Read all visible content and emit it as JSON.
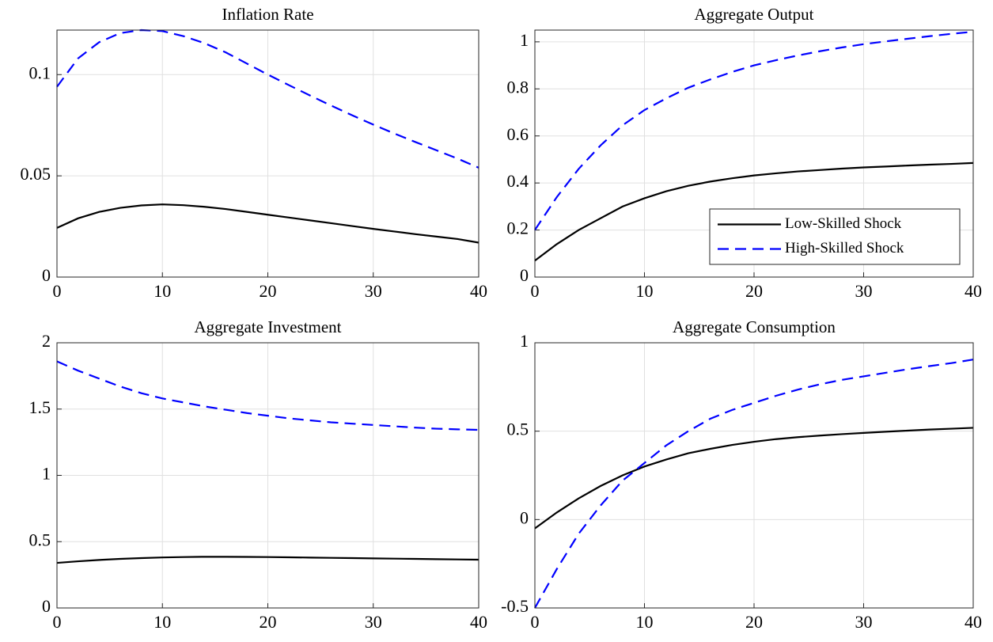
{
  "chart_data": [
    {
      "type": "line",
      "title": "Inflation Rate",
      "x": [
        0,
        2,
        4,
        6,
        8,
        10,
        12,
        14,
        16,
        18,
        20,
        22,
        24,
        26,
        28,
        30,
        32,
        34,
        36,
        38,
        40
      ],
      "xlim": [
        0,
        40
      ],
      "xticks": [
        0,
        10,
        20,
        30,
        40
      ],
      "ylim": [
        0,
        0.122
      ],
      "yticks": [
        0,
        0.05,
        0.1
      ],
      "grid": true,
      "series": [
        {
          "color": "#000000",
          "style": "solid",
          "values": [
            0.0243,
            0.029,
            0.0322,
            0.0342,
            0.0354,
            0.0359,
            0.0355,
            0.0347,
            0.0336,
            0.0322,
            0.0308,
            0.0294,
            0.028,
            0.0266,
            0.0252,
            0.0238,
            0.0225,
            0.0212,
            0.02,
            0.0188,
            0.017
          ]
        },
        {
          "color": "#0000ff",
          "style": "dashed",
          "values": [
            0.094,
            0.108,
            0.116,
            0.1205,
            0.122,
            0.1215,
            0.119,
            0.1155,
            0.111,
            0.1055,
            0.1,
            0.0948,
            0.0897,
            0.0847,
            0.0799,
            0.0753,
            0.0709,
            0.0667,
            0.0626,
            0.0585,
            0.054
          ]
        }
      ]
    },
    {
      "type": "line",
      "title": "Aggregate Output",
      "x": [
        0,
        2,
        4,
        6,
        8,
        10,
        12,
        14,
        16,
        18,
        20,
        22,
        24,
        26,
        28,
        30,
        32,
        34,
        36,
        38,
        40
      ],
      "xlim": [
        0,
        40
      ],
      "xticks": [
        0,
        10,
        20,
        30,
        40
      ],
      "ylim": [
        0,
        1.05
      ],
      "yticks": [
        0,
        0.2,
        0.4,
        0.6,
        0.8,
        1
      ],
      "grid": true,
      "legend": "lower right",
      "series": [
        {
          "name": "Low-Skilled Shock",
          "color": "#000000",
          "style": "solid",
          "values": [
            0.07,
            0.14,
            0.2,
            0.25,
            0.3,
            0.335,
            0.365,
            0.388,
            0.406,
            0.42,
            0.432,
            0.441,
            0.449,
            0.455,
            0.461,
            0.466,
            0.47,
            0.474,
            0.478,
            0.481,
            0.485
          ]
        },
        {
          "name": "High-Skilled Shock",
          "color": "#0000ff",
          "style": "dashed",
          "values": [
            0.2,
            0.34,
            0.46,
            0.56,
            0.645,
            0.71,
            0.76,
            0.805,
            0.84,
            0.872,
            0.9,
            0.922,
            0.942,
            0.96,
            0.976,
            0.99,
            1.002,
            1.013,
            1.024,
            1.034,
            1.043
          ]
        }
      ]
    },
    {
      "type": "line",
      "title": "Aggregate Investment",
      "x": [
        0,
        2,
        4,
        6,
        8,
        10,
        12,
        14,
        16,
        18,
        20,
        22,
        24,
        26,
        28,
        30,
        32,
        34,
        36,
        38,
        40
      ],
      "xlim": [
        0,
        40
      ],
      "xticks": [
        0,
        10,
        20,
        30,
        40
      ],
      "ylim": [
        0,
        2
      ],
      "yticks": [
        0,
        0.5,
        1,
        1.5,
        2
      ],
      "grid": true,
      "series": [
        {
          "color": "#000000",
          "style": "solid",
          "values": [
            0.34,
            0.352,
            0.362,
            0.37,
            0.376,
            0.381,
            0.384,
            0.386,
            0.386,
            0.385,
            0.384,
            0.382,
            0.38,
            0.378,
            0.376,
            0.374,
            0.372,
            0.37,
            0.368,
            0.366,
            0.364
          ]
        },
        {
          "color": "#0000ff",
          "style": "dashed",
          "values": [
            1.86,
            1.79,
            1.73,
            1.67,
            1.62,
            1.58,
            1.55,
            1.52,
            1.495,
            1.47,
            1.45,
            1.43,
            1.415,
            1.4,
            1.39,
            1.38,
            1.37,
            1.36,
            1.352,
            1.347,
            1.343
          ]
        }
      ]
    },
    {
      "type": "line",
      "title": "Aggregate Consumption",
      "x": [
        0,
        2,
        4,
        6,
        8,
        10,
        12,
        14,
        16,
        18,
        20,
        22,
        24,
        26,
        28,
        30,
        32,
        34,
        36,
        38,
        40
      ],
      "xlim": [
        0,
        40
      ],
      "xticks": [
        0,
        10,
        20,
        30,
        40
      ],
      "ylim": [
        -0.5,
        1
      ],
      "yticks": [
        -0.5,
        0,
        0.5,
        1
      ],
      "grid": true,
      "series": [
        {
          "color": "#000000",
          "style": "solid",
          "values": [
            -0.05,
            0.04,
            0.12,
            0.19,
            0.25,
            0.3,
            0.34,
            0.375,
            0.4,
            0.422,
            0.44,
            0.455,
            0.466,
            0.475,
            0.483,
            0.49,
            0.497,
            0.503,
            0.509,
            0.514,
            0.519
          ]
        },
        {
          "color": "#0000ff",
          "style": "dashed",
          "values": [
            -0.5,
            -0.28,
            -0.08,
            0.08,
            0.22,
            0.32,
            0.42,
            0.5,
            0.57,
            0.62,
            0.66,
            0.7,
            0.735,
            0.765,
            0.79,
            0.81,
            0.83,
            0.85,
            0.868,
            0.885,
            0.905
          ]
        }
      ]
    }
  ]
}
